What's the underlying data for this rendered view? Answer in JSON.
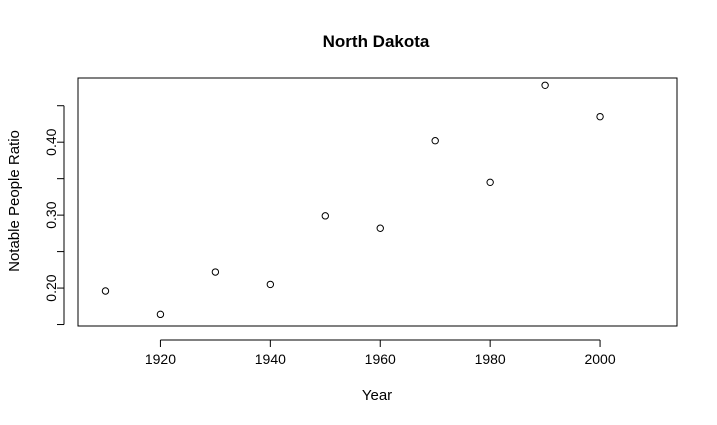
{
  "chart_data": {
    "type": "scatter",
    "title": "North Dakota",
    "xlabel": "Year",
    "ylabel": "Notable People Ratio",
    "xlim": [
      1905,
      2014
    ],
    "ylim": [
      0.148,
      0.488
    ],
    "xticks": [
      1920,
      1940,
      1960,
      1980,
      2000
    ],
    "xtick_labels": [
      "1920",
      "1940",
      "1960",
      "1980",
      "2000"
    ],
    "yticks": [
      0.15,
      0.2,
      0.25,
      0.3,
      0.35,
      0.4,
      0.45
    ],
    "ytick_labels": [
      "",
      "0.20",
      "",
      "0.30",
      "",
      "0.40",
      ""
    ],
    "grid": false,
    "marker": "open-circle",
    "colors": {
      "point_stroke": "#000000",
      "axis": "#000000",
      "background": "#ffffff"
    },
    "series": [
      {
        "x": [
          1910,
          1920,
          1930,
          1940,
          1950,
          1960,
          1970,
          1980,
          1990,
          2000
        ],
        "values": [
          0.196,
          0.164,
          0.222,
          0.205,
          0.299,
          0.282,
          0.402,
          0.345,
          0.478,
          0.435
        ]
      }
    ]
  }
}
